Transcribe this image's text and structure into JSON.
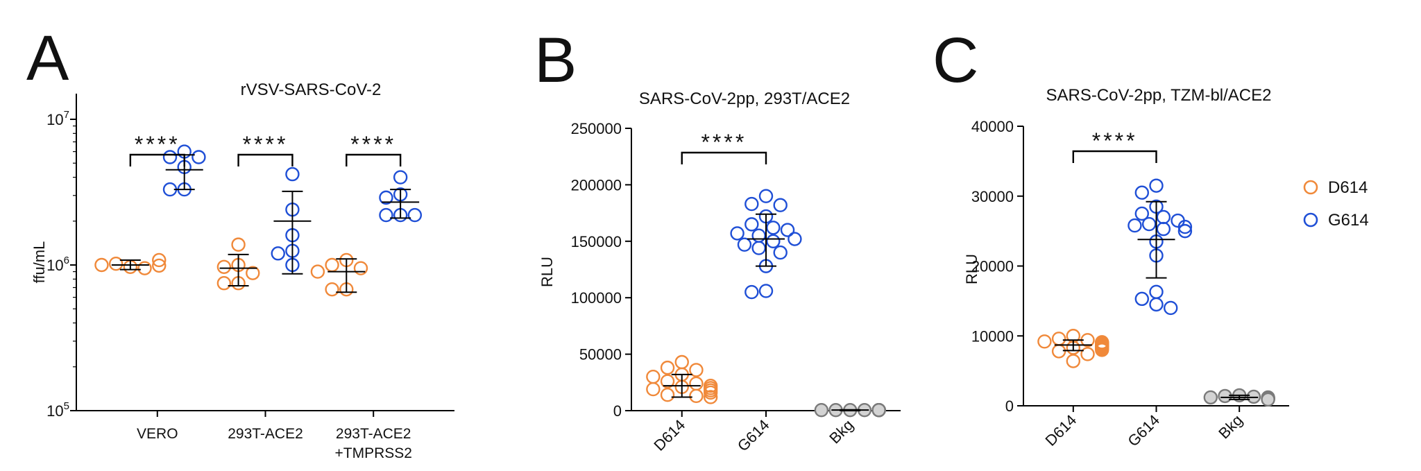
{
  "colors": {
    "D614": "#f0893a",
    "G614": "#1f4fd6",
    "Bkg": "#7a7a7a",
    "bkg_fill": "#d3d3d3"
  },
  "legend": {
    "items": [
      {
        "label": "D614",
        "color": "#f0893a"
      },
      {
        "label": "G614",
        "color": "#1f4fd6"
      }
    ]
  },
  "chart_data": [
    {
      "panel": "A",
      "type": "scatter",
      "title": "rVSV-SARS-CoV-2",
      "ylabel": "ffu/mL",
      "yscale": "log",
      "ylim": [
        100000,
        15000000
      ],
      "yticks": [
        {
          "value": 100000,
          "base": "10",
          "exp": "5"
        },
        {
          "value": 1000000,
          "base": "10",
          "exp": "6"
        },
        {
          "value": 10000000,
          "base": "10",
          "exp": "7"
        }
      ],
      "categories": [
        "VERO",
        "293T-ACE2",
        "293T-ACE2\n+TMPRSS2"
      ],
      "significance": "****",
      "groups": [
        {
          "category": "VERO",
          "series": "D614",
          "center": 0.75,
          "mean": 1000000,
          "err": [
            930000,
            1080000
          ],
          "points": [
            970000,
            1020000,
            950000,
            1000000,
            990000,
            1080000
          ]
        },
        {
          "category": "VERO",
          "series": "G614",
          "center": 1.25,
          "mean": 4500000,
          "err": [
            3300000,
            5700000
          ],
          "points": [
            6000000,
            5500000,
            5500000,
            4700000,
            3300000,
            3300000
          ]
        },
        {
          "category": "293T-ACE2",
          "series": "D614",
          "center": 1.75,
          "mean": 950000,
          "err": [
            720000,
            1180000
          ],
          "points": [
            1380000,
            1000000,
            970000,
            880000,
            750000,
            750000
          ]
        },
        {
          "category": "293T-ACE2",
          "series": "G614",
          "center": 2.25,
          "mean": 2000000,
          "err": [
            870000,
            3200000
          ],
          "points": [
            4200000,
            2400000,
            1600000,
            1250000,
            1200000,
            1000000
          ]
        },
        {
          "category": "293T-ACE2\n+TMPRSS2",
          "series": "D614",
          "center": 2.75,
          "mean": 900000,
          "err": [
            650000,
            1100000
          ],
          "points": [
            1080000,
            1000000,
            950000,
            900000,
            680000,
            680000
          ]
        },
        {
          "category": "293T-ACE2\n+TMPRSS2",
          "series": "G614",
          "center": 3.25,
          "mean": 2700000,
          "err": [
            2100000,
            3300000
          ],
          "points": [
            4000000,
            3050000,
            2900000,
            2200000,
            2200000,
            2200000
          ]
        }
      ]
    },
    {
      "panel": "B",
      "type": "scatter",
      "title": "SARS-CoV-2pp, 293T/ACE2",
      "ylabel": "RLU",
      "yscale": "linear",
      "ylim": [
        0,
        250000
      ],
      "yticks": [
        0,
        50000,
        100000,
        150000,
        200000,
        250000
      ],
      "categories": [
        "D614",
        "G614",
        "Bkg"
      ],
      "significance": "****",
      "groups": [
        {
          "category": "D614",
          "series": "D614",
          "center": 1,
          "mean": 22000,
          "err": [
            12000,
            32000
          ],
          "points": [
            43000,
            38000,
            36000,
            32000,
            30000,
            26000,
            24000,
            22000,
            21000,
            20000,
            19000,
            18000,
            16000,
            14000,
            13000,
            12000
          ]
        },
        {
          "category": "G614",
          "series": "G614",
          "center": 2,
          "mean": 152000,
          "err": [
            128000,
            174000
          ],
          "points": [
            190000,
            183000,
            182000,
            172000,
            165000,
            162000,
            160000,
            157000,
            155000,
            152000,
            150000,
            147000,
            144000,
            140000,
            128000,
            106000,
            105000
          ]
        },
        {
          "category": "Bkg",
          "series": "Bkg",
          "center": 3,
          "mean": 500,
          "err": [
            0,
            800
          ],
          "points": [
            500,
            500,
            500,
            500,
            500,
            500,
            500,
            500,
            500,
            500,
            500,
            500
          ]
        }
      ]
    },
    {
      "panel": "C",
      "type": "scatter",
      "title": "SARS-CoV-2pp, TZM-bl/ACE2",
      "ylabel": "RLU",
      "yscale": "linear",
      "ylim": [
        0,
        40000
      ],
      "yticks": [
        0,
        10000,
        20000,
        30000,
        40000
      ],
      "categories": [
        "D614",
        "G614",
        "Bkg"
      ],
      "significance": "****",
      "groups": [
        {
          "category": "D614",
          "series": "D614",
          "center": 1,
          "mean": 8700,
          "err": [
            7900,
            9400
          ],
          "points": [
            10000,
            9600,
            9400,
            9200,
            9100,
            9000,
            8900,
            8800,
            8700,
            8600,
            8500,
            8400,
            8300,
            8200,
            8000,
            7800,
            7400,
            6400
          ]
        },
        {
          "category": "G614",
          "series": "G614",
          "center": 2,
          "mean": 23800,
          "err": [
            18300,
            29200
          ],
          "points": [
            31500,
            30500,
            28500,
            27500,
            27000,
            26500,
            26000,
            25800,
            25600,
            25300,
            25000,
            23500,
            21500,
            16300,
            15300,
            14500,
            14000
          ]
        },
        {
          "category": "Bkg",
          "series": "Bkg",
          "center": 3,
          "mean": 1200,
          "err": [
            900,
            1500
          ],
          "points": [
            1500,
            1400,
            1300,
            1200,
            1200,
            1100,
            1100,
            1000,
            1000,
            900
          ]
        }
      ]
    }
  ]
}
